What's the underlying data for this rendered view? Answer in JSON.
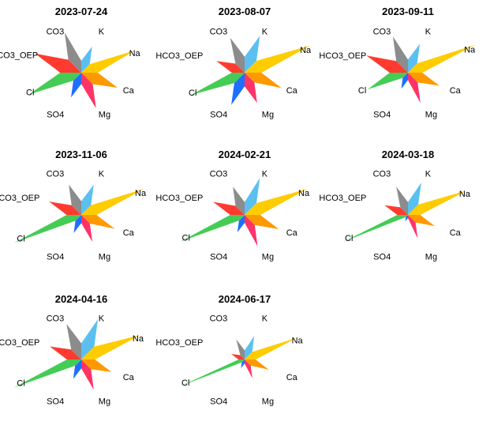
{
  "chart_data": {
    "type": "star",
    "title": "",
    "variables": [
      "K",
      "Na",
      "Ca",
      "Mg",
      "SO4",
      "Cl",
      "HCO3_OEP",
      "CO3"
    ],
    "colors": {
      "K": "#5bc0f0",
      "Na": "#ffcc00",
      "Ca": "#ff9900",
      "Mg": "#ff3366",
      "SO4": "#1f6fff",
      "Cl": "#44cc55",
      "HCO3_OEP": "#ff3b30",
      "CO3": "#8c8c8c"
    },
    "panels": [
      {
        "date": "2023-07-24",
        "values": {
          "K": 0.39,
          "Na": 0.8,
          "Ca": 0.54,
          "Mg": 0.53,
          "SO4": 0.37,
          "Cl": 0.78,
          "HCO3_OEP": 0.69,
          "CO3": 0.6
        }
      },
      {
        "date": "2023-08-07",
        "values": {
          "K": 0.55,
          "Na": 0.98,
          "Ca": 0.55,
          "Mg": 0.45,
          "SO4": 0.48,
          "Cl": 0.8,
          "HCO3_OEP": 0.42,
          "CO3": 0.52
        }
      },
      {
        "date": "2023-09-11",
        "values": {
          "K": 0.43,
          "Na": 1.0,
          "Ca": 0.47,
          "Mg": 0.45,
          "SO4": 0.24,
          "Cl": 0.6,
          "HCO3_OEP": 0.62,
          "CO3": 0.54
        }
      },
      {
        "date": "2023-11-06",
        "values": {
          "K": 0.45,
          "Na": 0.94,
          "Ca": 0.5,
          "Mg": 0.4,
          "SO4": 0.27,
          "Cl": 1.0,
          "HCO3_OEP": 0.48,
          "CO3": 0.45
        }
      },
      {
        "date": "2024-02-21",
        "values": {
          "K": 0.55,
          "Na": 0.94,
          "Ca": 0.51,
          "Mg": 0.47,
          "SO4": 0.26,
          "Cl": 0.96,
          "HCO3_OEP": 0.47,
          "CO3": 0.42
        }
      },
      {
        "date": "2024-03-18",
        "values": {
          "K": 0.48,
          "Na": 0.88,
          "Ca": 0.4,
          "Mg": 0.35,
          "SO4": 0.1,
          "Cl": 0.97,
          "HCO3_OEP": 0.35,
          "CO3": 0.42
        }
      },
      {
        "date": "2024-04-16",
        "values": {
          "K": 0.6,
          "Na": 0.88,
          "Ca": 0.45,
          "Mg": 0.45,
          "SO4": 0.29,
          "Cl": 1.0,
          "HCO3_OEP": 0.47,
          "CO3": 0.53
        }
      },
      {
        "date": "2024-06-17",
        "values": {
          "K": 0.35,
          "Na": 0.78,
          "Ca": 0.36,
          "Mg": 0.28,
          "SO4": 0.13,
          "Cl": 0.97,
          "HCO3_OEP": 0.2,
          "CO3": 0.3
        }
      }
    ]
  }
}
